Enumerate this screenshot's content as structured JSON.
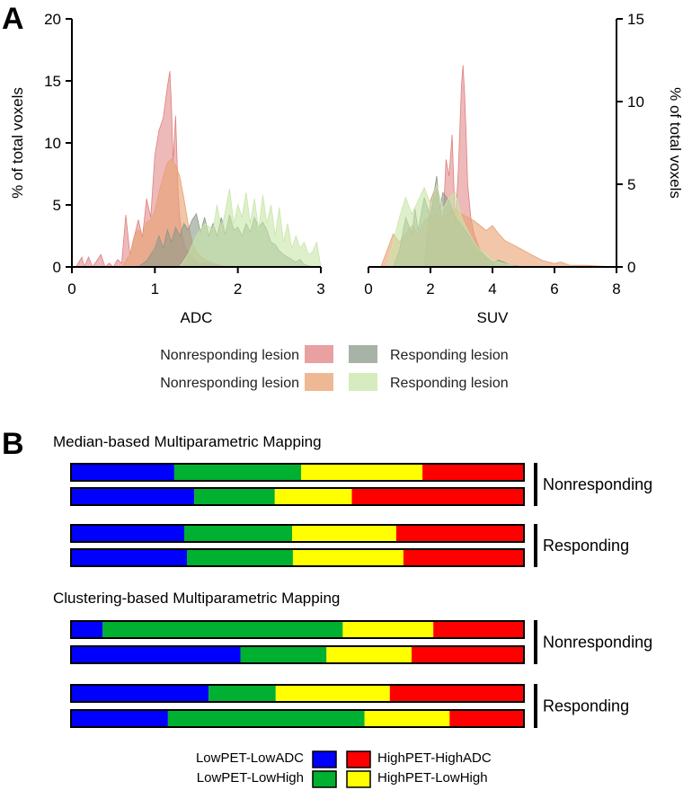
{
  "panel_labels": {
    "a": "A",
    "b": "B"
  },
  "chart_data": [
    {
      "type": "area",
      "panel": "A-left",
      "xlabel": "ADC",
      "ylabel": "% of total voxels",
      "xlim": [
        0,
        3
      ],
      "ylim": [
        0,
        20
      ],
      "xticks": [
        0,
        1,
        2,
        3
      ],
      "yticks": [
        0,
        5,
        10,
        15,
        20
      ],
      "series": [
        {
          "name": "Nonresponding lesion",
          "color": "#e08080",
          "opacity": 0.55,
          "x": [
            0.05,
            0.12,
            0.15,
            0.2,
            0.25,
            0.3,
            0.35,
            0.4,
            0.45,
            0.5,
            0.55,
            0.6,
            0.65,
            0.7,
            0.75,
            0.8,
            0.85,
            0.9,
            0.95,
            1.0,
            1.05,
            1.1,
            1.15,
            1.18,
            1.2,
            1.22,
            1.25,
            1.28,
            1.3,
            1.33,
            1.36,
            1.4,
            1.45,
            1.5,
            1.55,
            1.6,
            1.7,
            1.8,
            1.9,
            2.0
          ],
          "y": [
            0,
            0.8,
            0,
            0.8,
            0,
            0.5,
            1.0,
            0,
            0.3,
            0,
            0.6,
            0.3,
            4.2,
            1.0,
            2.4,
            3.8,
            2.4,
            5.5,
            4.0,
            9.0,
            11.0,
            12.0,
            14.5,
            15.8,
            13.0,
            8.5,
            12.2,
            6.0,
            4.0,
            2.5,
            1.6,
            1.2,
            0.8,
            0.4,
            0.2,
            0.3,
            0.2,
            0.1,
            0,
            0
          ]
        },
        {
          "name": "Nonresponding lesion",
          "color": "#e8a070",
          "opacity": 0.6,
          "x": [
            0.6,
            0.7,
            0.75,
            0.8,
            0.85,
            0.9,
            0.95,
            1.0,
            1.05,
            1.1,
            1.15,
            1.2,
            1.25,
            1.3,
            1.35,
            1.4,
            1.45,
            1.5,
            1.6,
            1.7,
            1.8,
            1.9
          ],
          "y": [
            0,
            1.0,
            2.5,
            3.0,
            2.6,
            3.6,
            3.8,
            4.5,
            6.0,
            7.3,
            8.4,
            8.7,
            8.2,
            7.3,
            5.5,
            3.5,
            2.0,
            1.2,
            0.6,
            0.3,
            0.1,
            0
          ]
        },
        {
          "name": "Responding lesion",
          "color": "#8a9a88",
          "opacity": 0.6,
          "x": [
            0.8,
            0.9,
            1.0,
            1.05,
            1.1,
            1.15,
            1.2,
            1.25,
            1.3,
            1.35,
            1.4,
            1.45,
            1.5,
            1.55,
            1.6,
            1.65,
            1.7,
            1.75,
            1.8,
            1.85,
            1.9,
            1.95,
            2.0,
            2.05,
            2.1,
            2.15,
            2.2,
            2.25,
            2.3,
            2.35,
            2.4,
            2.45,
            2.5,
            2.55,
            2.6,
            2.65,
            2.7,
            2.75,
            2.8,
            2.9
          ],
          "y": [
            0,
            0.5,
            1.5,
            2.5,
            1.5,
            3.0,
            2.0,
            3.2,
            2.5,
            3.5,
            3.0,
            3.8,
            4.3,
            2.8,
            4.0,
            2.5,
            3.5,
            2.5,
            4.0,
            2.6,
            4.2,
            3.0,
            3.2,
            2.5,
            3.5,
            2.8,
            4.0,
            3.2,
            3.6,
            3.0,
            2.0,
            1.8,
            1.3,
            1.0,
            0.8,
            0.6,
            0.4,
            0.6,
            0.2,
            0
          ]
        },
        {
          "name": "Responding lesion",
          "color": "#c8e6a8",
          "opacity": 0.6,
          "x": [
            1.3,
            1.4,
            1.5,
            1.6,
            1.7,
            1.75,
            1.8,
            1.85,
            1.9,
            1.95,
            2.0,
            2.05,
            2.1,
            2.15,
            2.2,
            2.25,
            2.3,
            2.35,
            2.4,
            2.45,
            2.5,
            2.55,
            2.6,
            2.65,
            2.7,
            2.75,
            2.8,
            2.85,
            2.9,
            2.95,
            3.0
          ],
          "y": [
            0,
            1.0,
            2.5,
            3.5,
            3.0,
            5.0,
            3.0,
            4.5,
            6.3,
            3.5,
            5.0,
            4.0,
            6.0,
            3.5,
            5.5,
            3.0,
            5.8,
            3.5,
            5.0,
            2.5,
            4.8,
            2.0,
            3.5,
            1.5,
            2.5,
            1.5,
            2.0,
            1.0,
            1.2,
            2.0,
            0
          ]
        }
      ]
    },
    {
      "type": "area",
      "panel": "A-right",
      "xlabel": "SUV",
      "ylabel": "% of total voxels",
      "xlim": [
        0,
        8
      ],
      "ylim": [
        0,
        15
      ],
      "xticks": [
        0,
        2,
        4,
        6,
        8
      ],
      "yticks": [
        0,
        5,
        10,
        15
      ],
      "series": [
        {
          "name": "Nonresponding lesion",
          "color": "#e08080",
          "opacity": 0.55,
          "x": [
            1.8,
            2.0,
            2.2,
            2.4,
            2.5,
            2.6,
            2.7,
            2.8,
            2.9,
            3.0,
            3.05,
            3.1,
            3.15,
            3.2,
            3.3,
            3.4,
            3.6,
            3.8,
            4.0,
            4.2
          ],
          "y": [
            0,
            4.0,
            5.0,
            2.5,
            6.5,
            5.5,
            8.0,
            2.5,
            6.0,
            11.0,
            12.2,
            10.5,
            8.0,
            5.0,
            3.0,
            2.0,
            1.0,
            0.5,
            0.2,
            0
          ]
        },
        {
          "name": "Nonresponding lesion",
          "color": "#e8a070",
          "opacity": 0.6,
          "x": [
            0.4,
            0.6,
            0.8,
            1.0,
            1.2,
            1.4,
            1.6,
            1.8,
            2.0,
            2.2,
            2.4,
            2.6,
            2.8,
            3.0,
            3.2,
            3.4,
            3.6,
            3.8,
            4.0,
            4.2,
            4.4,
            4.6,
            4.8,
            5.0,
            5.2,
            5.4,
            5.6,
            5.8,
            6.0,
            6.2,
            6.5,
            7.0,
            7.5,
            8.0
          ],
          "y": [
            0,
            1.0,
            2.0,
            1.5,
            2.0,
            2.5,
            2.0,
            2.8,
            3.0,
            3.2,
            3.0,
            3.3,
            3.5,
            3.2,
            3.0,
            2.8,
            2.5,
            2.2,
            2.5,
            2.0,
            1.6,
            1.4,
            1.2,
            1.0,
            0.8,
            0.6,
            0.4,
            0.3,
            0.2,
            0.3,
            0.1,
            0.1,
            0.05,
            0
          ]
        },
        {
          "name": "Responding lesion",
          "color": "#8a9a88",
          "opacity": 0.6,
          "x": [
            0.8,
            1.0,
            1.2,
            1.4,
            1.5,
            1.6,
            1.8,
            2.0,
            2.2,
            2.3,
            2.4,
            2.6,
            2.8,
            3.0,
            3.2,
            3.4,
            3.6,
            3.8,
            4.0,
            4.2,
            4.6,
            5.0
          ],
          "y": [
            0,
            1.0,
            3.0,
            2.0,
            3.5,
            2.2,
            4.2,
            3.0,
            5.5,
            3.5,
            4.5,
            4.0,
            3.0,
            2.5,
            2.0,
            1.5,
            1.0,
            0.6,
            0.3,
            0.4,
            0.1,
            0
          ]
        },
        {
          "name": "Responding lesion",
          "color": "#c8e6a8",
          "opacity": 0.6,
          "x": [
            0.6,
            0.8,
            1.0,
            1.2,
            1.4,
            1.6,
            1.8,
            2.0,
            2.2,
            2.4,
            2.6,
            2.8,
            3.0,
            3.2,
            3.4,
            3.6,
            3.8,
            4.0,
            4.4,
            4.8
          ],
          "y": [
            0,
            1.5,
            3.0,
            4.2,
            3.2,
            4.0,
            4.8,
            3.8,
            5.0,
            3.5,
            4.2,
            4.5,
            3.0,
            2.2,
            1.5,
            1.0,
            0.8,
            0.4,
            0.2,
            0
          ]
        }
      ]
    },
    {
      "type": "bar",
      "panel": "B",
      "stacked": true,
      "normalized": true,
      "legend": [
        {
          "name": "LowPET-LowADC",
          "color": "#0000ff"
        },
        {
          "name": "HighPET-HighADC",
          "color": "#ff0000"
        },
        {
          "name": "LowPET-LowHigh",
          "color": "#00b030"
        },
        {
          "name": "HighPET-LowHigh",
          "color": "#ffff00"
        }
      ],
      "segment_order": [
        "LowPET-LowADC",
        "LowPET-LowHigh",
        "HighPET-LowHigh",
        "HighPET-HighADC"
      ],
      "segment_colors": [
        "#0000ff",
        "#00b030",
        "#ffff00",
        "#ff0000"
      ],
      "sections": [
        {
          "title": "Median-based Multiparametric Mapping",
          "groups": [
            {
              "label": "Nonresponding",
              "bars": [
                [
                  22.8,
                  28.0,
                  26.8,
                  22.4
                ],
                [
                  27.2,
                  17.8,
                  17.0,
                  38.0
                ]
              ]
            },
            {
              "label": "Responding",
              "bars": [
                [
                  25.0,
                  23.8,
                  23.0,
                  28.2
                ],
                [
                  25.6,
                  23.4,
                  24.4,
                  26.6
                ]
              ]
            }
          ]
        },
        {
          "title": "Clustering-based Multiparametric Mapping",
          "groups": [
            {
              "label": "Nonresponding",
              "bars": [
                [
                  7.0,
                  53.0,
                  20.0,
                  20.0
                ],
                [
                  37.4,
                  19.0,
                  18.8,
                  24.8
                ]
              ]
            },
            {
              "label": "Responding",
              "bars": [
                [
                  30.4,
                  14.8,
                  25.2,
                  29.6
                ],
                [
                  21.4,
                  43.4,
                  18.8,
                  16.4
                ]
              ]
            }
          ]
        }
      ]
    }
  ],
  "legend_a": [
    {
      "label": "Nonresponding lesion",
      "color": "#e08080"
    },
    {
      "label": "Responding lesion",
      "color": "#8a9a88"
    },
    {
      "label": "Nonresponding lesion",
      "color": "#e8a070"
    },
    {
      "label": "Responding lesion",
      "color": "#c8e6a8"
    }
  ]
}
